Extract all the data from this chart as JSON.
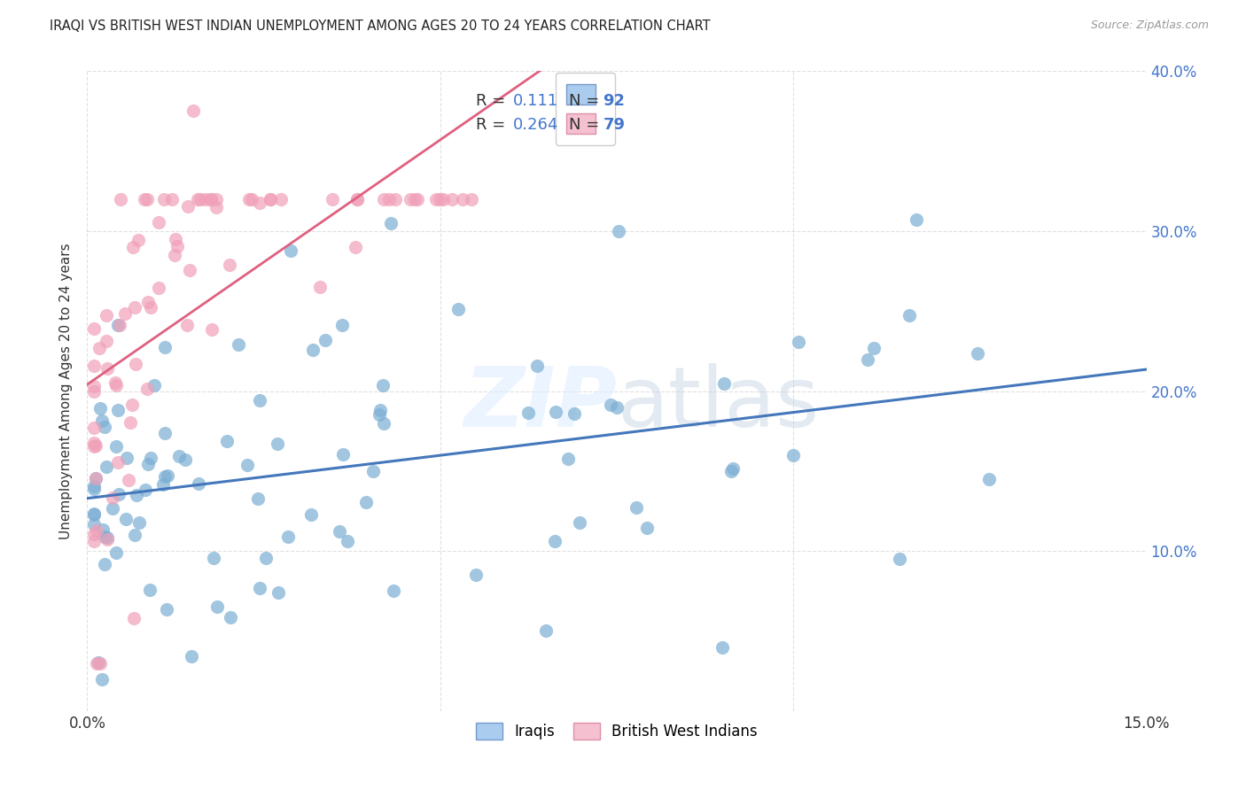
{
  "title": "IRAQI VS BRITISH WEST INDIAN UNEMPLOYMENT AMONG AGES 20 TO 24 YEARS CORRELATION CHART",
  "source": "Source: ZipAtlas.com",
  "ylabel": "Unemployment Among Ages 20 to 24 years",
  "xlim": [
    0,
    0.15
  ],
  "ylim": [
    0,
    0.4
  ],
  "series": [
    {
      "name": "Iraqis",
      "dot_color": "#7bafd4",
      "line_color": "#4477bb",
      "R": 0.111,
      "N": 92
    },
    {
      "name": "British West Indians",
      "dot_color": "#f0a0b8",
      "line_color": "#e06080",
      "R": 0.264,
      "N": 79
    }
  ],
  "watermark": "ZIPatlas",
  "background_color": "#ffffff",
  "label_color": "#4477cc",
  "text_color": "#333333"
}
